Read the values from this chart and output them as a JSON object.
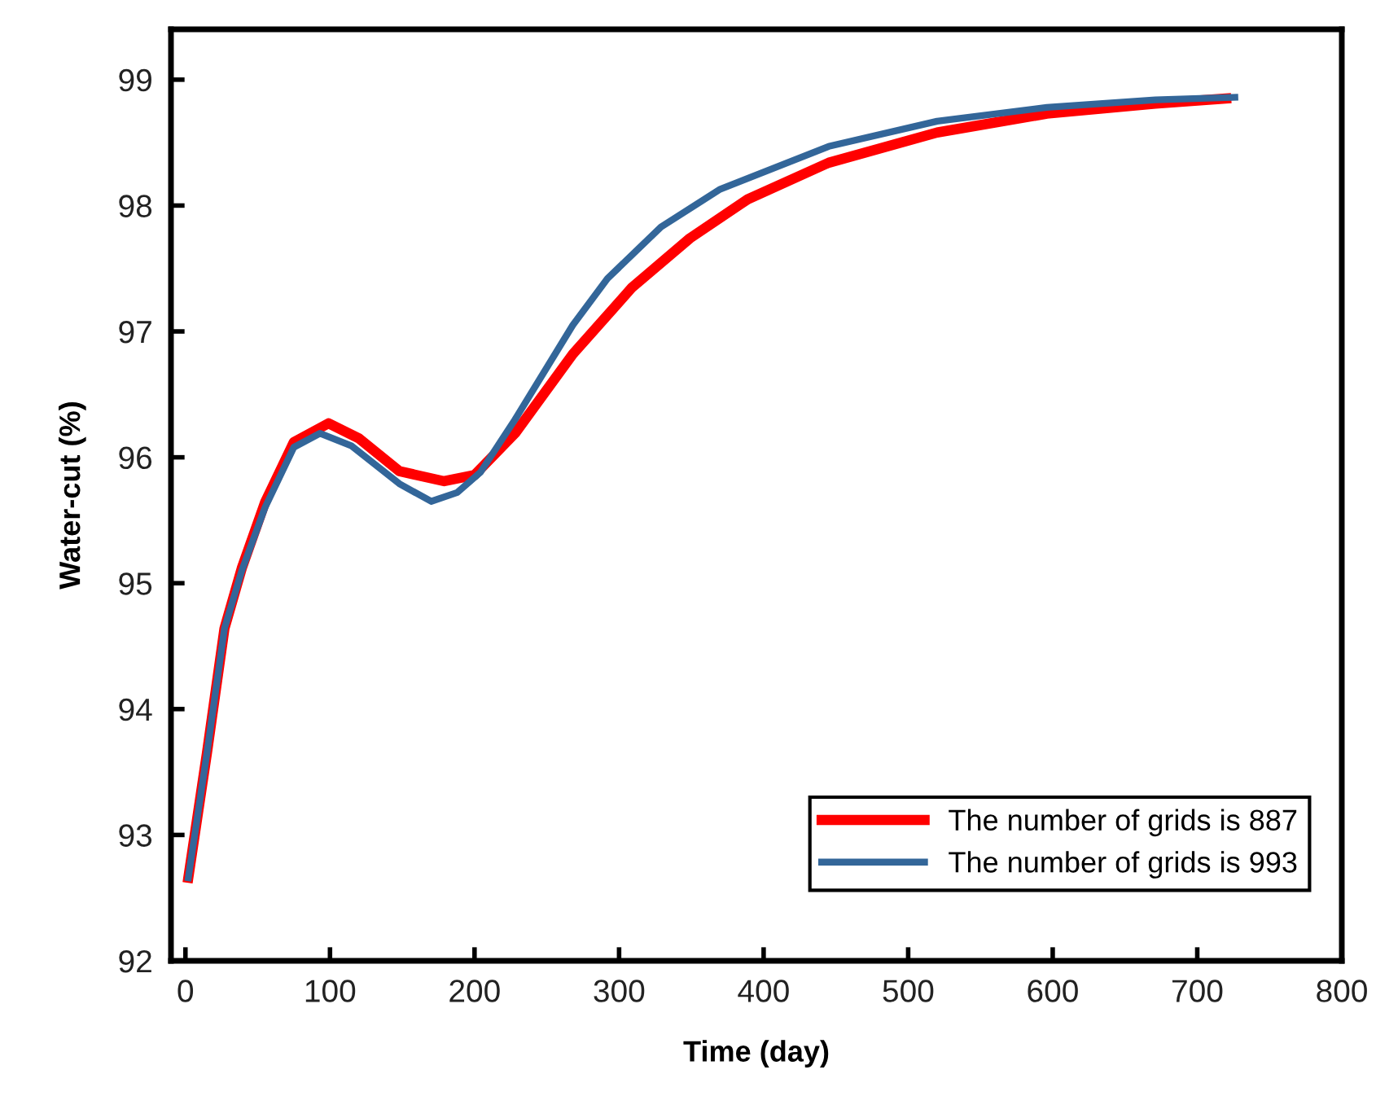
{
  "chart_data": {
    "type": "line",
    "xlabel": "Time (day)",
    "ylabel": "Water-cut (%)",
    "xlim": [
      -10,
      800
    ],
    "xticks": [
      0,
      100,
      200,
      300,
      400,
      500,
      600,
      700,
      800
    ],
    "ylim": [
      92,
      99.4
    ],
    "yticks": [
      92,
      93,
      94,
      95,
      96,
      97,
      98,
      99
    ],
    "grid": false,
    "legend": "bottom right",
    "marker": "none",
    "line_style": "solid",
    "series": [
      {
        "name": "The number of grids is 887",
        "color": "#ff0000",
        "x": [
          2,
          15,
          27,
          39,
          55,
          75,
          99,
          120,
          148,
          179,
          200,
          228,
          268,
          309,
          349,
          389,
          445,
          520,
          596,
          671,
          720
        ],
        "values": [
          92.66,
          93.66,
          94.64,
          95.12,
          95.64,
          96.12,
          96.27,
          96.15,
          95.89,
          95.81,
          95.86,
          96.19,
          96.82,
          97.35,
          97.74,
          98.05,
          98.34,
          98.58,
          98.73,
          98.81,
          98.85
        ]
      },
      {
        "name": "The number of grids is 993",
        "color": "#336699",
        "x": [
          2,
          15,
          27,
          39,
          55,
          75,
          93,
          115,
          148,
          170,
          188,
          204,
          228,
          268,
          292,
          329,
          370,
          445,
          520,
          596,
          671,
          726
        ],
        "values": [
          92.66,
          93.66,
          94.64,
          95.1,
          95.6,
          96.08,
          96.19,
          96.09,
          95.79,
          95.65,
          95.72,
          95.88,
          96.3,
          97.05,
          97.42,
          97.83,
          98.13,
          98.47,
          98.67,
          98.78,
          98.84,
          98.86
        ]
      }
    ]
  }
}
